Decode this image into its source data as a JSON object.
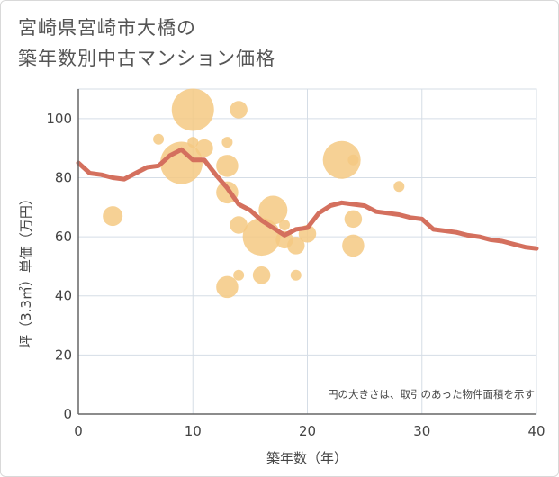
{
  "chart_data": {
    "type": "scatter",
    "title_lines": [
      "宮崎県宮崎市大橋の",
      "築年数別中古マンション価格"
    ],
    "xlabel": "築年数（年）",
    "ylabel": "坪（3.3㎡）単価（万円）",
    "xlim": [
      0,
      40
    ],
    "ylim": [
      0,
      110
    ],
    "xticks": [
      "0",
      "10",
      "20",
      "30",
      "40"
    ],
    "yticks": [
      "0",
      "20",
      "40",
      "60",
      "80",
      "100"
    ],
    "note": "円の大きさは、取引のあった物件面積を示す",
    "colors": {
      "bubble": "#f5c983",
      "line": "#d4705e",
      "grid": "#d5dde6",
      "axis": "#666666"
    },
    "bubbles": [
      {
        "x": 3,
        "y": 67,
        "size": 3
      },
      {
        "x": 7,
        "y": 93,
        "size": 1
      },
      {
        "x": 9,
        "y": 85,
        "size": 8
      },
      {
        "x": 10,
        "y": 103,
        "size": 8
      },
      {
        "x": 10,
        "y": 92,
        "size": 1
      },
      {
        "x": 11,
        "y": 90,
        "size": 2.5
      },
      {
        "x": 13,
        "y": 92,
        "size": 1
      },
      {
        "x": 13,
        "y": 84,
        "size": 3.5
      },
      {
        "x": 13,
        "y": 75,
        "size": 3.5
      },
      {
        "x": 13,
        "y": 43,
        "size": 3.5
      },
      {
        "x": 14,
        "y": 103,
        "size": 2.5
      },
      {
        "x": 14,
        "y": 64,
        "size": 2.5
      },
      {
        "x": 14,
        "y": 47,
        "size": 1
      },
      {
        "x": 16,
        "y": 60,
        "size": 7
      },
      {
        "x": 16,
        "y": 47,
        "size": 2.5
      },
      {
        "x": 17,
        "y": 69,
        "size": 5
      },
      {
        "x": 18,
        "y": 64,
        "size": 1
      },
      {
        "x": 18,
        "y": 59,
        "size": 2.5
      },
      {
        "x": 19,
        "y": 57,
        "size": 2.5
      },
      {
        "x": 19,
        "y": 47,
        "size": 1
      },
      {
        "x": 20,
        "y": 61,
        "size": 2.5
      },
      {
        "x": 23,
        "y": 86,
        "size": 7
      },
      {
        "x": 24,
        "y": 86,
        "size": 1
      },
      {
        "x": 24,
        "y": 66,
        "size": 2.5
      },
      {
        "x": 24,
        "y": 57,
        "size": 3.5
      },
      {
        "x": 28,
        "y": 77,
        "size": 1
      }
    ],
    "trend": {
      "x": [
        0,
        1,
        2,
        3,
        4,
        5,
        6,
        7,
        8,
        9,
        10,
        11,
        12,
        13,
        14,
        15,
        16,
        17,
        18,
        19,
        20,
        21,
        22,
        23,
        24,
        25,
        26,
        27,
        28,
        29,
        30,
        31,
        32,
        33,
        34,
        35,
        36,
        37,
        38,
        39,
        40
      ],
      "y": [
        85,
        81.5,
        81,
        80,
        79.5,
        81.5,
        83.5,
        84,
        87.5,
        89.5,
        86,
        86,
        81,
        76.5,
        71,
        69,
        65.5,
        63,
        60.5,
        62.5,
        63,
        68,
        70.5,
        71.5,
        71,
        70.5,
        68.5,
        68,
        67.5,
        66.5,
        66,
        62.5,
        62,
        61.5,
        60.5,
        60,
        59,
        58.5,
        57.5,
        56.5,
        56
      ]
    }
  }
}
